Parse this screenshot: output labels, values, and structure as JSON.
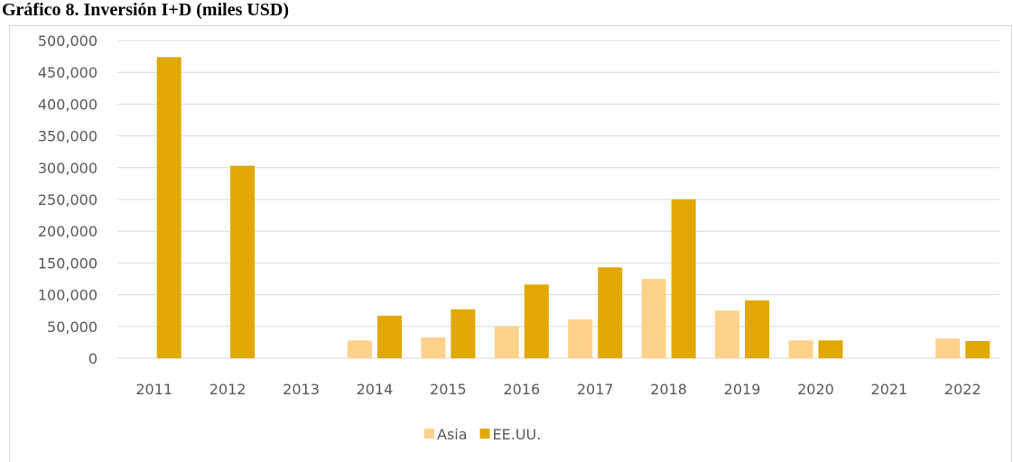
{
  "chart_data": {
    "type": "bar",
    "title": "Gráfico 8. Inversión I+D (miles USD)",
    "categories": [
      "2011",
      "2012",
      "2013",
      "2014",
      "2015",
      "2016",
      "2017",
      "2018",
      "2019",
      "2020",
      "2021",
      "2022"
    ],
    "series": [
      {
        "name": "Asia",
        "color": "#ffd28c",
        "values": [
          null,
          null,
          null,
          28000,
          33000,
          50000,
          61000,
          125000,
          75000,
          28000,
          null,
          31000
        ]
      },
      {
        "name": "EE.UU.",
        "color": "#e0a800",
        "values": [
          474000,
          303000,
          null,
          67000,
          77000,
          116000,
          143000,
          250000,
          91000,
          28000,
          null,
          27000
        ]
      }
    ],
    "ylim": [
      0,
      500000
    ],
    "yticks": [
      0,
      {
        "value": 50000,
        "label": "50,000"
      },
      {
        "value": 100000,
        "label": "100,000"
      },
      {
        "value": 150000,
        "label": "150,000"
      },
      {
        "value": 200000,
        "label": "200,000"
      },
      {
        "value": 250000,
        "label": "250,000"
      },
      {
        "value": 300000,
        "label": "300,000"
      },
      {
        "value": 350000,
        "label": "350,000"
      },
      {
        "value": 400000,
        "label": "400,000"
      },
      {
        "value": 450000,
        "label": "450,000"
      },
      {
        "value": 500000,
        "label": "500,000"
      }
    ],
    "grid": true,
    "legend": "bottom"
  }
}
